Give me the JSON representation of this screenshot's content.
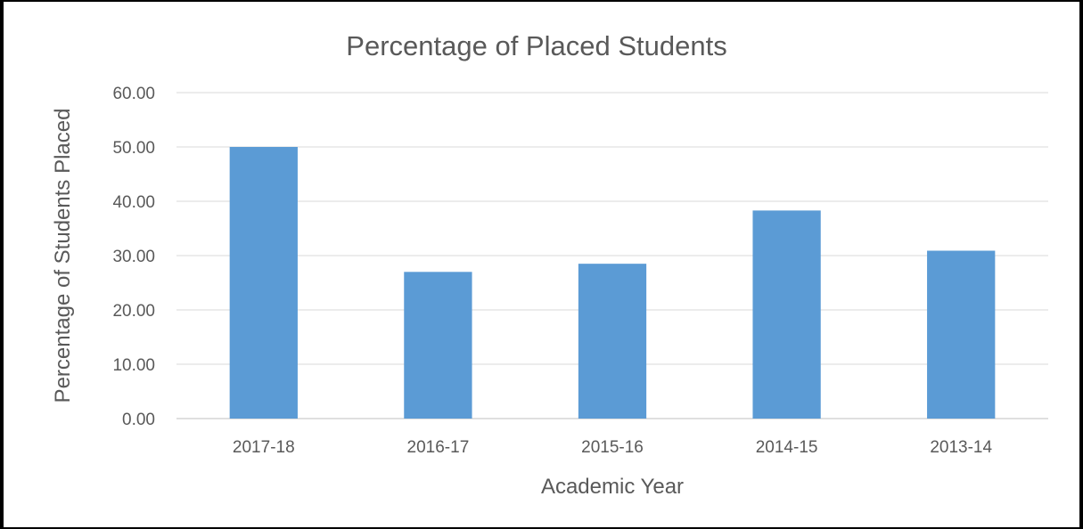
{
  "chart_data": {
    "type": "bar",
    "title": "Percentage of Placed Students",
    "xlabel": "Academic Year",
    "ylabel": "Percentage of Students Placed",
    "categories": [
      "2017-18",
      "2016-17",
      "2015-16",
      "2014-15",
      "2013-14"
    ],
    "values": [
      50.0,
      27.0,
      28.5,
      38.3,
      30.9
    ],
    "ylim": [
      0,
      60
    ],
    "yticks": [
      "0.00",
      "10.00",
      "20.00",
      "30.00",
      "40.00",
      "50.00",
      "60.00"
    ],
    "grid": true,
    "legend": "none",
    "bar_color": "#5b9bd5"
  }
}
